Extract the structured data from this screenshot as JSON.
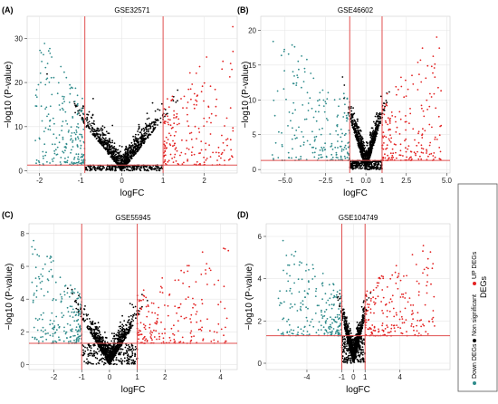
{
  "legend": {
    "title": "DEGs",
    "items": [
      {
        "label": "Down DEGs",
        "color": "#2e8b8b"
      },
      {
        "label": "Non significant",
        "color": "#000000"
      },
      {
        "label": "UP DEGs",
        "color": "#e32222"
      }
    ]
  },
  "colors": {
    "down": "#2e8b8b",
    "ns": "#000000",
    "up": "#e32222",
    "threshold": "#e05050",
    "grid": "#e6e6e6"
  },
  "chart_data": [
    {
      "type": "scatter",
      "panel_label": "(A)",
      "title": "GSE32571",
      "xlabel": "logFC",
      "ylabel": "−log10 (P-value)",
      "xlim": [
        -2.3,
        2.8
      ],
      "ylim": [
        -0.5,
        35
      ],
      "xticks": [
        -2,
        -1,
        0,
        1,
        2
      ],
      "yticks": [
        0,
        10,
        20,
        30
      ],
      "vlines": [
        -0.9,
        1.0
      ],
      "hline": 1.3,
      "grid": true,
      "point_summary": {
        "down_logfc_range": [
          -2.1,
          -0.9
        ],
        "up_logfc_range": [
          1.0,
          2.7
        ],
        "max_y": 33
      }
    },
    {
      "type": "scatter",
      "panel_label": "(B)",
      "title": "GSE46602",
      "xlabel": "logFC",
      "ylabel": "−log10 (P-value)",
      "xlim": [
        -6.5,
        5.2
      ],
      "ylim": [
        -0.5,
        22
      ],
      "xticks": [
        -5.0,
        -2.5,
        0.0,
        2.5,
        5.0
      ],
      "xtick_labels": [
        "−5.0",
        "−2.5",
        "0.0",
        "2.5",
        "5.0"
      ],
      "extra_xtick_labels": [
        {
          "x": -1,
          "label": "−1"
        },
        {
          "x": 1,
          "label": "1"
        }
      ],
      "yticks": [
        0,
        5,
        10,
        15,
        20
      ],
      "vlines": [
        -1,
        1
      ],
      "hline": 1.3,
      "grid": true,
      "point_summary": {
        "down_logfc_range": [
          -5.8,
          -1
        ],
        "up_logfc_range": [
          1,
          4.7
        ],
        "max_y": 21
      }
    },
    {
      "type": "scatter",
      "panel_label": "(C)",
      "title": "GSE55945",
      "xlabel": "logFC",
      "ylabel": "−log10 (P-value)",
      "xlim": [
        -2.9,
        4.6
      ],
      "ylim": [
        -0.3,
        8.6
      ],
      "xticks": [
        -2,
        -1,
        0,
        1,
        2,
        4
      ],
      "yticks": [
        0,
        2,
        4,
        6,
        8
      ],
      "vlines": [
        -1,
        1
      ],
      "hline": 1.3,
      "grid": true,
      "point_summary": {
        "down_logfc_range": [
          -2.8,
          -1
        ],
        "up_logfc_range": [
          1,
          4.3
        ],
        "max_y": 8
      }
    },
    {
      "type": "scatter",
      "panel_label": "(D)",
      "title": "GSE104749",
      "xlabel": "logFC",
      "ylabel": "−log10 (P-value)",
      "xlim": [
        -7.5,
        8.3
      ],
      "ylim": [
        -0.3,
        6.6
      ],
      "xticks": [
        -4,
        -1,
        0,
        1,
        4
      ],
      "yticks": [
        0,
        2,
        4,
        6
      ],
      "vlines": [
        -1,
        1
      ],
      "hline": 1.3,
      "grid": true,
      "point_summary": {
        "down_logfc_range": [
          -6.5,
          -1
        ],
        "up_logfc_range": [
          1,
          7
        ],
        "max_y": 6.2
      }
    }
  ]
}
